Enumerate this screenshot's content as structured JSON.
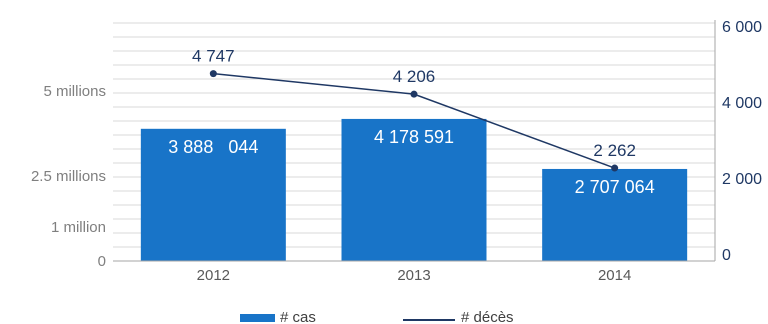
{
  "chart_data": {
    "type": "bar",
    "categories": [
      "2012",
      "2013",
      "2014"
    ],
    "series": [
      {
        "name": "# cas",
        "type": "bar",
        "axis": "left",
        "values": [
          3888044,
          4178591,
          2707064
        ],
        "labels": [
          "3 888   044",
          "4 178 591",
          "2 707 064"
        ]
      },
      {
        "name": "# décès",
        "type": "line",
        "axis": "right",
        "values": [
          4747,
          4206,
          2262
        ],
        "labels": [
          "4 747",
          "4 206",
          "2 262"
        ]
      }
    ],
    "y_left": {
      "ticks": [
        {
          "value": 0,
          "label": "0"
        },
        {
          "value": 1000000,
          "label": "1 million"
        },
        {
          "value": 2500000,
          "label": "2.5 millions"
        },
        {
          "value": 5000000,
          "label": "5 millions"
        }
      ]
    },
    "y_right": {
      "ticks": [
        {
          "value": 0,
          "label": "0"
        },
        {
          "value": 2000,
          "label": "2 000"
        },
        {
          "value": 4000,
          "label": "4 000"
        },
        {
          "value": 6000,
          "label": "6 000"
        }
      ]
    },
    "grid": true,
    "legend_position": "bottom",
    "colors": {
      "bars": "#1874c8",
      "line": "#1f3864",
      "grid": "#d9d9d9",
      "axis": "#a6a6a6"
    }
  }
}
